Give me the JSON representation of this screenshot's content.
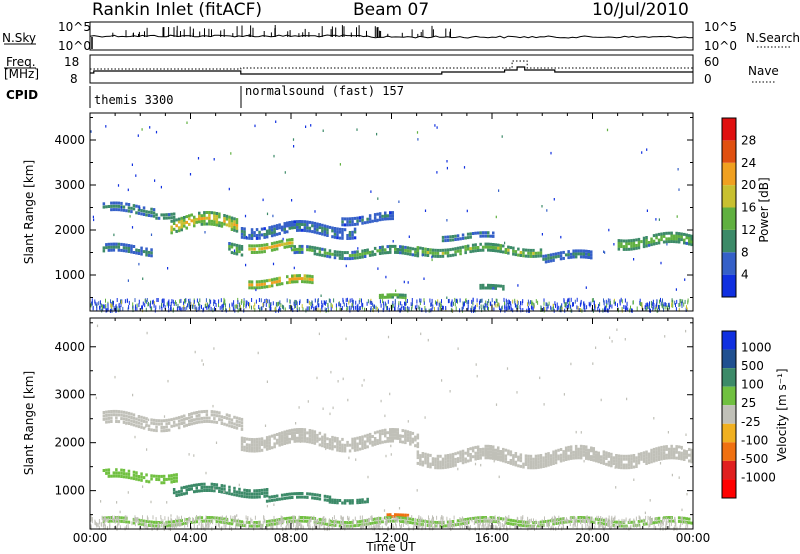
{
  "header": {
    "station": "Rankin Inlet (fitACF)",
    "beam": "Beam 07",
    "date": "10/Jul/2010"
  },
  "strip_left": {
    "nsky_label": "N.Sky",
    "nsky_top": "10^5",
    "nsky_bottom": "10^0",
    "freq_label": "Freq.",
    "freq_unit": "[MHz]",
    "freq_top": "18",
    "freq_bottom": "8",
    "cpid_label": "CPID"
  },
  "strip_right": {
    "nsearch_top": "10^5",
    "nsearch_bottom": "10^0",
    "nsearch_label": "N.Search",
    "nave_top": "60",
    "nave_bottom": "0",
    "nave_label": "Nave"
  },
  "cpid": [
    {
      "name": "themis 3300",
      "start_hour": 0
    },
    {
      "name": "normalsound (fast) 157",
      "start_hour": 6
    }
  ],
  "xaxis": {
    "title": "Time UT",
    "ticks": [
      "00:00",
      "04:00",
      "08:00",
      "12:00",
      "16:00",
      "20:00",
      "00:00"
    ]
  },
  "colors": {
    "power": [
      "#1030e0",
      "#3560c8",
      "#3c8a68",
      "#60b040",
      "#c8c030",
      "#f0a020",
      "#e05010",
      "#e01010"
    ],
    "velocity": [
      "#1030e0",
      "#205090",
      "#3c8a68",
      "#70c040",
      "#c0c0b8",
      "#f0b020",
      "#f07010",
      "#e02020",
      "#ff0000"
    ]
  },
  "chart_data": [
    {
      "type": "heatmap",
      "name": "power",
      "ylabel": "Slant Range [km]",
      "yticks": [
        1000,
        2000,
        3000,
        4000
      ],
      "ylim": [
        200,
        4600
      ],
      "xlim_hours": [
        0,
        24
      ],
      "colorbar_label": "Power [dB]",
      "colorbar_ticks": [
        "28",
        "24",
        "20",
        "16",
        "12",
        "8",
        "4"
      ],
      "bands": [
        {
          "t0": 0.5,
          "t1": 2.6,
          "r": 2450,
          "w": 220,
          "v": 10
        },
        {
          "t0": 0.5,
          "t1": 2.5,
          "r": 1550,
          "w": 200,
          "v": 9
        },
        {
          "t0": 2.6,
          "t1": 3.4,
          "r": 2350,
          "w": 150,
          "v": 12
        },
        {
          "t0": 3.2,
          "t1": 5.8,
          "r": 2150,
          "w": 320,
          "v": 20
        },
        {
          "t0": 5.5,
          "t1": 6.0,
          "r": 1600,
          "w": 250,
          "v": 14
        },
        {
          "t0": 6.3,
          "t1": 8.0,
          "r": 1650,
          "w": 220,
          "v": 20
        },
        {
          "t0": 6.3,
          "t1": 8.8,
          "r": 850,
          "w": 200,
          "v": 21
        },
        {
          "t0": 6.0,
          "t1": 10.5,
          "r": 2000,
          "w": 260,
          "v": 9
        },
        {
          "t0": 8.0,
          "t1": 13.0,
          "r": 1500,
          "w": 200,
          "v": 13
        },
        {
          "t0": 10.0,
          "t1": 12.0,
          "r": 2250,
          "w": 200,
          "v": 8
        },
        {
          "t0": 13.0,
          "t1": 18.0,
          "r": 1550,
          "w": 200,
          "v": 15
        },
        {
          "t0": 14.0,
          "t1": 16.0,
          "r": 1850,
          "w": 150,
          "v": 10
        },
        {
          "t0": 18.0,
          "t1": 20.0,
          "r": 1400,
          "w": 200,
          "v": 9
        },
        {
          "t0": 21.0,
          "t1": 24.0,
          "r": 1750,
          "w": 250,
          "v": 15
        },
        {
          "t0": 11.5,
          "t1": 12.5,
          "r": 500,
          "w": 100,
          "v": 16
        },
        {
          "t0": 15.5,
          "t1": 16.5,
          "r": 700,
          "w": 120,
          "v": 12
        }
      ]
    },
    {
      "type": "heatmap",
      "name": "velocity",
      "ylabel": "Slant Range [km]",
      "yticks": [
        1000,
        2000,
        3000,
        4000
      ],
      "ylim": [
        200,
        4600
      ],
      "xlim_hours": [
        0,
        24
      ],
      "colorbar_label": "Velocity [m s⁻¹]",
      "colorbar_ticks": [
        "1000",
        "500",
        "100",
        "25",
        "-25",
        "-100",
        "-500",
        "-1000"
      ],
      "bands": [
        {
          "t0": 0.5,
          "t1": 6.0,
          "r": 2450,
          "w": 280,
          "v": 0
        },
        {
          "t0": 6.0,
          "t1": 13.0,
          "r": 2050,
          "w": 300,
          "v": 0
        },
        {
          "t0": 13.0,
          "t1": 24.0,
          "r": 1700,
          "w": 300,
          "v": 0
        },
        {
          "t0": 3.3,
          "t1": 7.0,
          "r": 1000,
          "w": 200,
          "v": 200
        },
        {
          "t0": 7.0,
          "t1": 9.5,
          "r": 850,
          "w": 150,
          "v": 200
        },
        {
          "t0": 9.5,
          "t1": 11.0,
          "r": 800,
          "w": 100,
          "v": 150
        },
        {
          "t0": 0.5,
          "t1": 3.5,
          "r": 1300,
          "w": 200,
          "v": 60
        },
        {
          "t0": 11.8,
          "t1": 12.6,
          "r": 450,
          "w": 80,
          "v": -200
        },
        {
          "t0": 0.5,
          "t1": 24.0,
          "r": 350,
          "w": 150,
          "v": 40
        }
      ]
    }
  ]
}
